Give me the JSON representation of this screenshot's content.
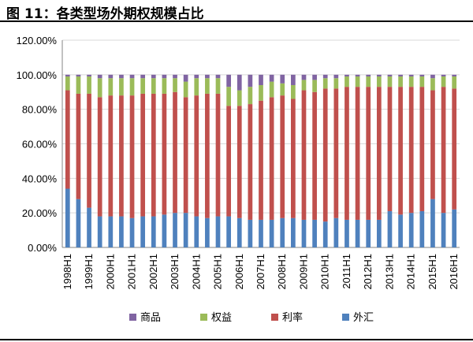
{
  "title": "图 11：各类型场外期权规模占比",
  "chart_data": {
    "type": "bar",
    "stacked": true,
    "categories": [
      "1998H1",
      "1998H2",
      "1999H1",
      "1999H2",
      "2000H1",
      "2000H2",
      "2001H1",
      "2001H2",
      "2002H1",
      "2002H2",
      "2003H1",
      "2003H2",
      "2004H1",
      "2004H2",
      "2005H1",
      "2005H2",
      "2006H1",
      "2006H2",
      "2007H1",
      "2007H2",
      "2008H1",
      "2008H2",
      "2009H1",
      "2009H2",
      "2010H1",
      "2010H2",
      "2011H1",
      "2011H2",
      "2012H1",
      "2012H2",
      "2013H1",
      "2013H2",
      "2014H1",
      "2014H2",
      "2015H1",
      "2015H2",
      "2016H1"
    ],
    "shown_tick_labels": [
      "1998H1",
      "1999H1",
      "2000H1",
      "2001H1",
      "2002H1",
      "2003H1",
      "2004H1",
      "2005H1",
      "2006H1",
      "2007H1",
      "2008H1",
      "2009H1",
      "2010H1",
      "2011H1",
      "2012H1",
      "2013H1",
      "2014H1",
      "2015H1",
      "2016H1"
    ],
    "ylim": [
      0,
      120
    ],
    "yticks": [
      "0.00%",
      "20.00%",
      "40.00%",
      "60.00%",
      "80.00%",
      "100.00%",
      "120.00%"
    ],
    "grid": true,
    "legend_position": "bottom",
    "series": [
      {
        "name": "外汇",
        "color": "#4F81BD",
        "values": [
          34,
          28,
          23,
          18,
          18,
          18,
          17,
          18,
          18,
          19,
          20,
          20,
          18,
          17,
          18,
          18,
          17,
          16,
          16,
          16,
          17,
          17,
          16,
          16,
          15,
          17,
          16,
          16,
          16,
          16,
          21,
          19,
          20,
          21,
          28,
          20,
          22
        ]
      },
      {
        "name": "利率",
        "color": "#C0504D",
        "values": [
          57,
          61,
          66,
          69,
          70,
          70,
          71,
          71,
          71,
          70,
          70,
          67,
          70,
          72,
          71,
          64,
          65,
          67,
          69,
          71,
          71,
          69,
          75,
          74,
          77,
          75,
          77,
          77,
          77,
          77,
          72,
          74,
          73,
          72,
          63,
          73,
          70
        ]
      },
      {
        "name": "权益",
        "color": "#9BBB59",
        "values": [
          8,
          10,
          10,
          11,
          10,
          10,
          10,
          9,
          9,
          9,
          8,
          9,
          10,
          9,
          9,
          11,
          9,
          10,
          9,
          9,
          7,
          8,
          6,
          7,
          6,
          6,
          6,
          6,
          6,
          6,
          6,
          6,
          6,
          6,
          7,
          6,
          7
        ]
      },
      {
        "name": "商品",
        "color": "#8064A2",
        "values": [
          1,
          1,
          1,
          2,
          2,
          2,
          2,
          2,
          2,
          2,
          2,
          4,
          2,
          2,
          2,
          7,
          9,
          7,
          6,
          4,
          5,
          6,
          3,
          3,
          2,
          2,
          1,
          1,
          1,
          1,
          1,
          1,
          1,
          1,
          2,
          1,
          1
        ]
      }
    ],
    "legend_order": [
      "商品",
      "权益",
      "利率",
      "外汇"
    ]
  }
}
